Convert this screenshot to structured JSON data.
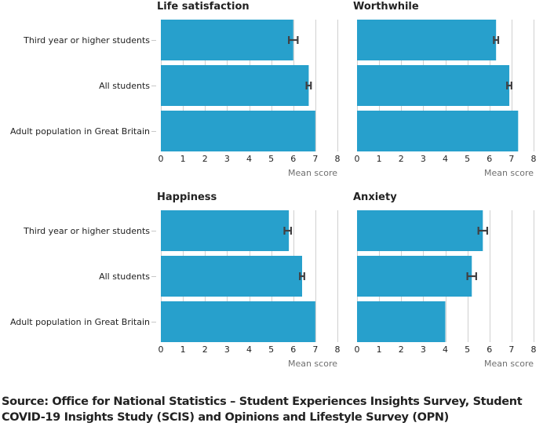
{
  "chart_data": {
    "type": "bar",
    "orientation": "horizontal",
    "categories": [
      "Third year or higher students",
      "All students",
      "Adult population in Great Britain"
    ],
    "xlabel": "Mean score",
    "xlim": [
      0,
      8
    ],
    "xticks": [
      "0",
      "1",
      "2",
      "3",
      "4",
      "5",
      "6",
      "7",
      "8"
    ],
    "grid": true,
    "bar_color": "#27a0cc",
    "errorbar_color": "#414042",
    "panels": [
      {
        "title": "Life satisfaction",
        "values": [
          6.0,
          6.7,
          7.0
        ],
        "error_bars": [
          [
            5.8,
            6.2
          ],
          [
            6.6,
            6.8
          ],
          null
        ]
      },
      {
        "title": "Worthwhile",
        "values": [
          6.3,
          6.9,
          7.3
        ],
        "error_bars": [
          [
            6.2,
            6.4
          ],
          [
            6.8,
            7.0
          ],
          null
        ]
      },
      {
        "title": "Happiness",
        "values": [
          5.8,
          6.4,
          7.0
        ],
        "error_bars": [
          [
            5.6,
            5.9
          ],
          [
            6.3,
            6.5
          ],
          null
        ]
      },
      {
        "title": "Anxiety",
        "values": [
          5.7,
          5.2,
          4.0
        ],
        "error_bars": [
          [
            5.5,
            5.9
          ],
          [
            5.0,
            5.4
          ],
          null
        ]
      }
    ]
  },
  "source": "Source: Office for National Statistics – Student Experiences Insights Survey, Student COVID-19 Insights Study (SCIS) and Opinions and Lifestyle Survey (OPN)"
}
